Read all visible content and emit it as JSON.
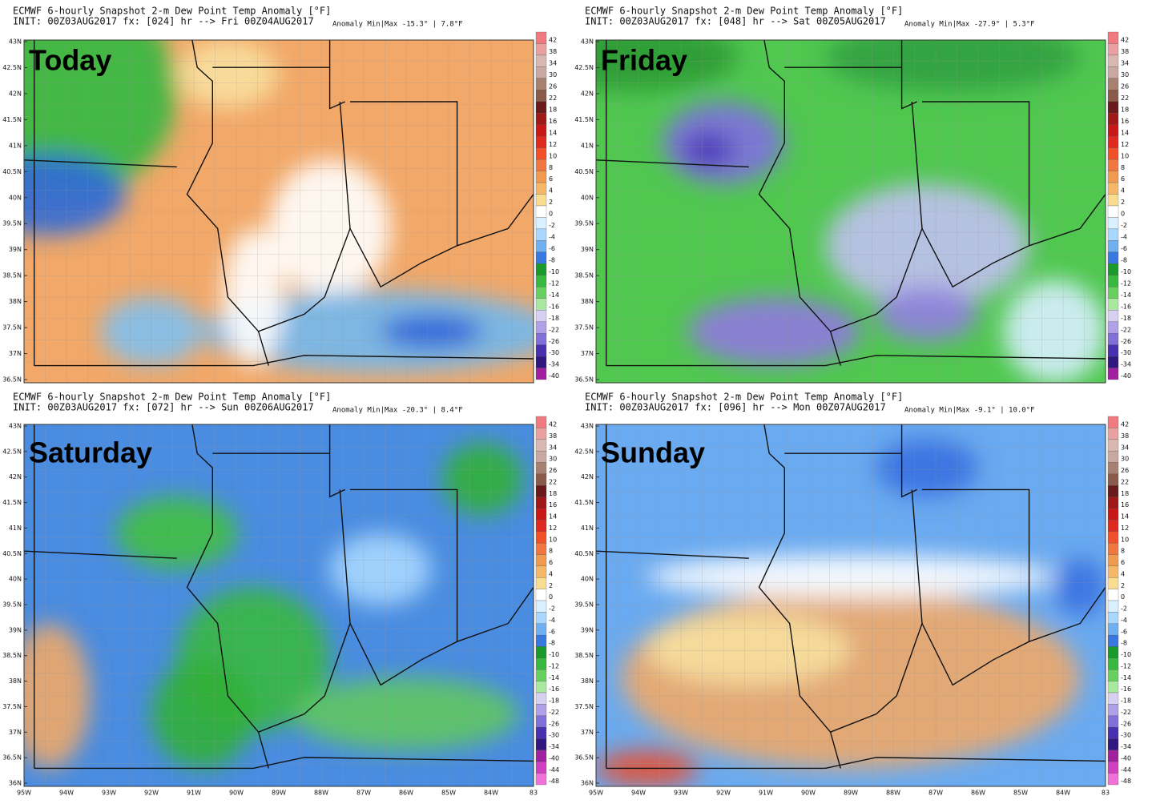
{
  "panels": [
    {
      "title": "ECMWF 6-hourly Snapshot 2-m Dew Point Temp Anomaly [°F]",
      "init": "INIT: 00Z03AUG2017 fx: [024] hr --> Fri 00Z04AUG2017",
      "anomaly": "Anomaly Min|Max -15.3° | 7.8°F",
      "label": "Today"
    },
    {
      "title": "ECMWF 6-hourly Snapshot 2-m Dew Point Temp Anomaly [°F]",
      "init": "INIT: 00Z03AUG2017 fx: [048] hr --> Sat 00Z05AUG2017",
      "anomaly": "Anomaly Min|Max -27.9° | 5.3°F",
      "label": "Friday"
    },
    {
      "title": "ECMWF 6-hourly Snapshot 2-m Dew Point Temp Anomaly [°F]",
      "init": "INIT: 00Z03AUG2017 fx: [072] hr --> Sun 00Z06AUG2017",
      "anomaly": "Anomaly Min|Max -20.3° | 8.4°F",
      "label": "Saturday"
    },
    {
      "title": "ECMWF 6-hourly Snapshot 2-m Dew Point Temp Anomaly [°F]",
      "init": "INIT: 00Z03AUG2017 fx: [096] hr --> Mon 00Z07AUG2017",
      "anomaly": "Anomaly Min|Max -9.1° | 10.0°F",
      "label": "Sunday"
    }
  ],
  "colorbar_labels": [
    "42",
    "38",
    "34",
    "30",
    "26",
    "22",
    "18",
    "16",
    "14",
    "12",
    "10",
    "8",
    "6",
    "4",
    "2",
    "0",
    "-2",
    "-4",
    "-6",
    "-8",
    "-10",
    "-12",
    "-14",
    "-16",
    "-18",
    "-22",
    "-26",
    "-30",
    "-34",
    "-40",
    "-44",
    "-48"
  ],
  "latitudes": [
    "43N",
    "42.5N",
    "42N",
    "41.5N",
    "41N",
    "40.5N",
    "40N",
    "39.5N",
    "39N",
    "38.5N",
    "38N",
    "37.5N",
    "37N",
    "36.5N",
    "36N"
  ],
  "longitudes": [
    "95W",
    "94W",
    "93W",
    "92W",
    "91W",
    "90W",
    "89W",
    "88W",
    "87W",
    "86W",
    "85W",
    "84W",
    "83"
  ]
}
